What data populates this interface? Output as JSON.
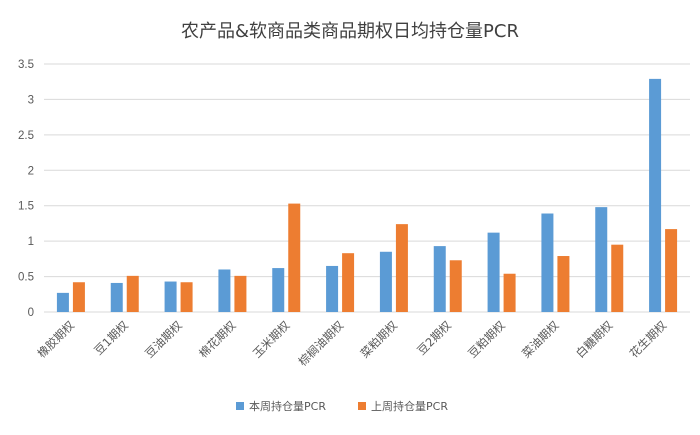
{
  "chart_data": {
    "type": "bar",
    "title": "农产品&软商品类商品期权日均持仓量PCR",
    "categories": [
      "橡胶期权",
      "豆1期权",
      "豆油期权",
      "棉花期权",
      "玉米期权",
      "棕榈油期权",
      "菜粕期权",
      "豆2期权",
      "豆粕期权",
      "菜油期权",
      "白糖期权",
      "花生期权"
    ],
    "series": [
      {
        "name": "本周持仓量PCR",
        "color": "#5b9bd5",
        "values": [
          0.27,
          0.41,
          0.43,
          0.6,
          0.62,
          0.65,
          0.85,
          0.93,
          1.12,
          1.39,
          1.48,
          3.29
        ]
      },
      {
        "name": "上周持仓量PCR",
        "color": "#ed7d31",
        "values": [
          0.42,
          0.51,
          0.42,
          0.51,
          1.53,
          0.83,
          1.24,
          0.73,
          0.54,
          0.79,
          0.95,
          1.17
        ]
      }
    ],
    "yticks": [
      "0",
      "0.5",
      "1",
      "1.5",
      "2",
      "2.5",
      "3",
      "3.5"
    ],
    "ylim": [
      0,
      3.5
    ],
    "grid": true,
    "legend": "bottom"
  }
}
